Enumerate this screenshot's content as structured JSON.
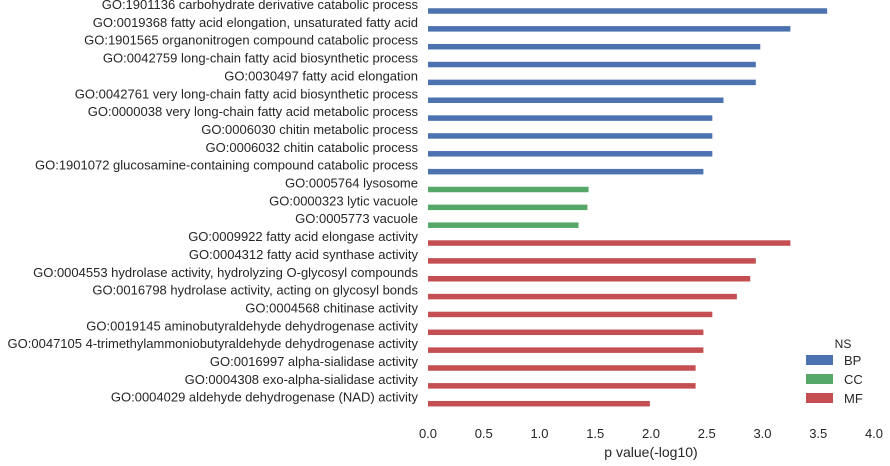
{
  "chart_data": {
    "type": "bar",
    "orientation": "horizontal",
    "xlabel": "p value(-log10)",
    "ylabel": "",
    "xlim": [
      0,
      4.0
    ],
    "xticks": [
      "0.0",
      "0.5",
      "1.0",
      "1.5",
      "2.0",
      "2.5",
      "3.0",
      "3.5",
      "4.0"
    ],
    "grid": false,
    "legend": {
      "title": "NS",
      "position": "bottom-right",
      "entries": [
        {
          "name": "BP",
          "color": "#4c72b0"
        },
        {
          "name": "CC",
          "color": "#55a868"
        },
        {
          "name": "MF",
          "color": "#c44e52"
        }
      ]
    },
    "categories": [
      "GO:1901136 carbohydrate derivative catabolic process",
      "GO:0019368 fatty acid elongation, unsaturated fatty acid",
      "GO:1901565 organonitrogen compound catabolic process",
      "GO:0042759 long-chain fatty acid biosynthetic process",
      "GO:0030497 fatty acid elongation",
      "GO:0042761 very long-chain fatty acid biosynthetic process",
      "GO:0000038 very long-chain fatty acid metabolic process",
      "GO:0006030 chitin metabolic process",
      "GO:0006032 chitin catabolic process",
      "GO:1901072 glucosamine-containing compound catabolic process",
      "GO:0005764 lysosome",
      "GO:0000323 lytic vacuole",
      "GO:0005773 vacuole",
      "GO:0009922 fatty acid elongase activity",
      "GO:0004312 fatty acid synthase activity",
      "GO:0004553 hydrolase activity, hydrolyzing O-glycosyl compounds",
      "GO:0016798 hydrolase activity, acting on glycosyl bonds",
      "GO:0004568 chitinase activity",
      "GO:0019145 aminobutyraldehyde dehydrogenase activity",
      "GO:0047105 4-trimethylammoniobutyraldehyde dehydrogenase activity",
      "GO:0016997 alpha-sialidase activity",
      "GO:0004308 exo-alpha-sialidase activity",
      "GO:0004029 aldehyde dehydrogenase (NAD) activity"
    ],
    "values": [
      3.58,
      3.25,
      2.98,
      2.94,
      2.94,
      2.65,
      2.55,
      2.55,
      2.55,
      2.47,
      1.44,
      1.43,
      1.35,
      3.25,
      2.94,
      2.89,
      2.77,
      2.55,
      2.47,
      2.47,
      2.4,
      2.4,
      1.99
    ],
    "groups": [
      "BP",
      "BP",
      "BP",
      "BP",
      "BP",
      "BP",
      "BP",
      "BP",
      "BP",
      "BP",
      "CC",
      "CC",
      "CC",
      "MF",
      "MF",
      "MF",
      "MF",
      "MF",
      "MF",
      "MF",
      "MF",
      "MF",
      "MF"
    ]
  }
}
